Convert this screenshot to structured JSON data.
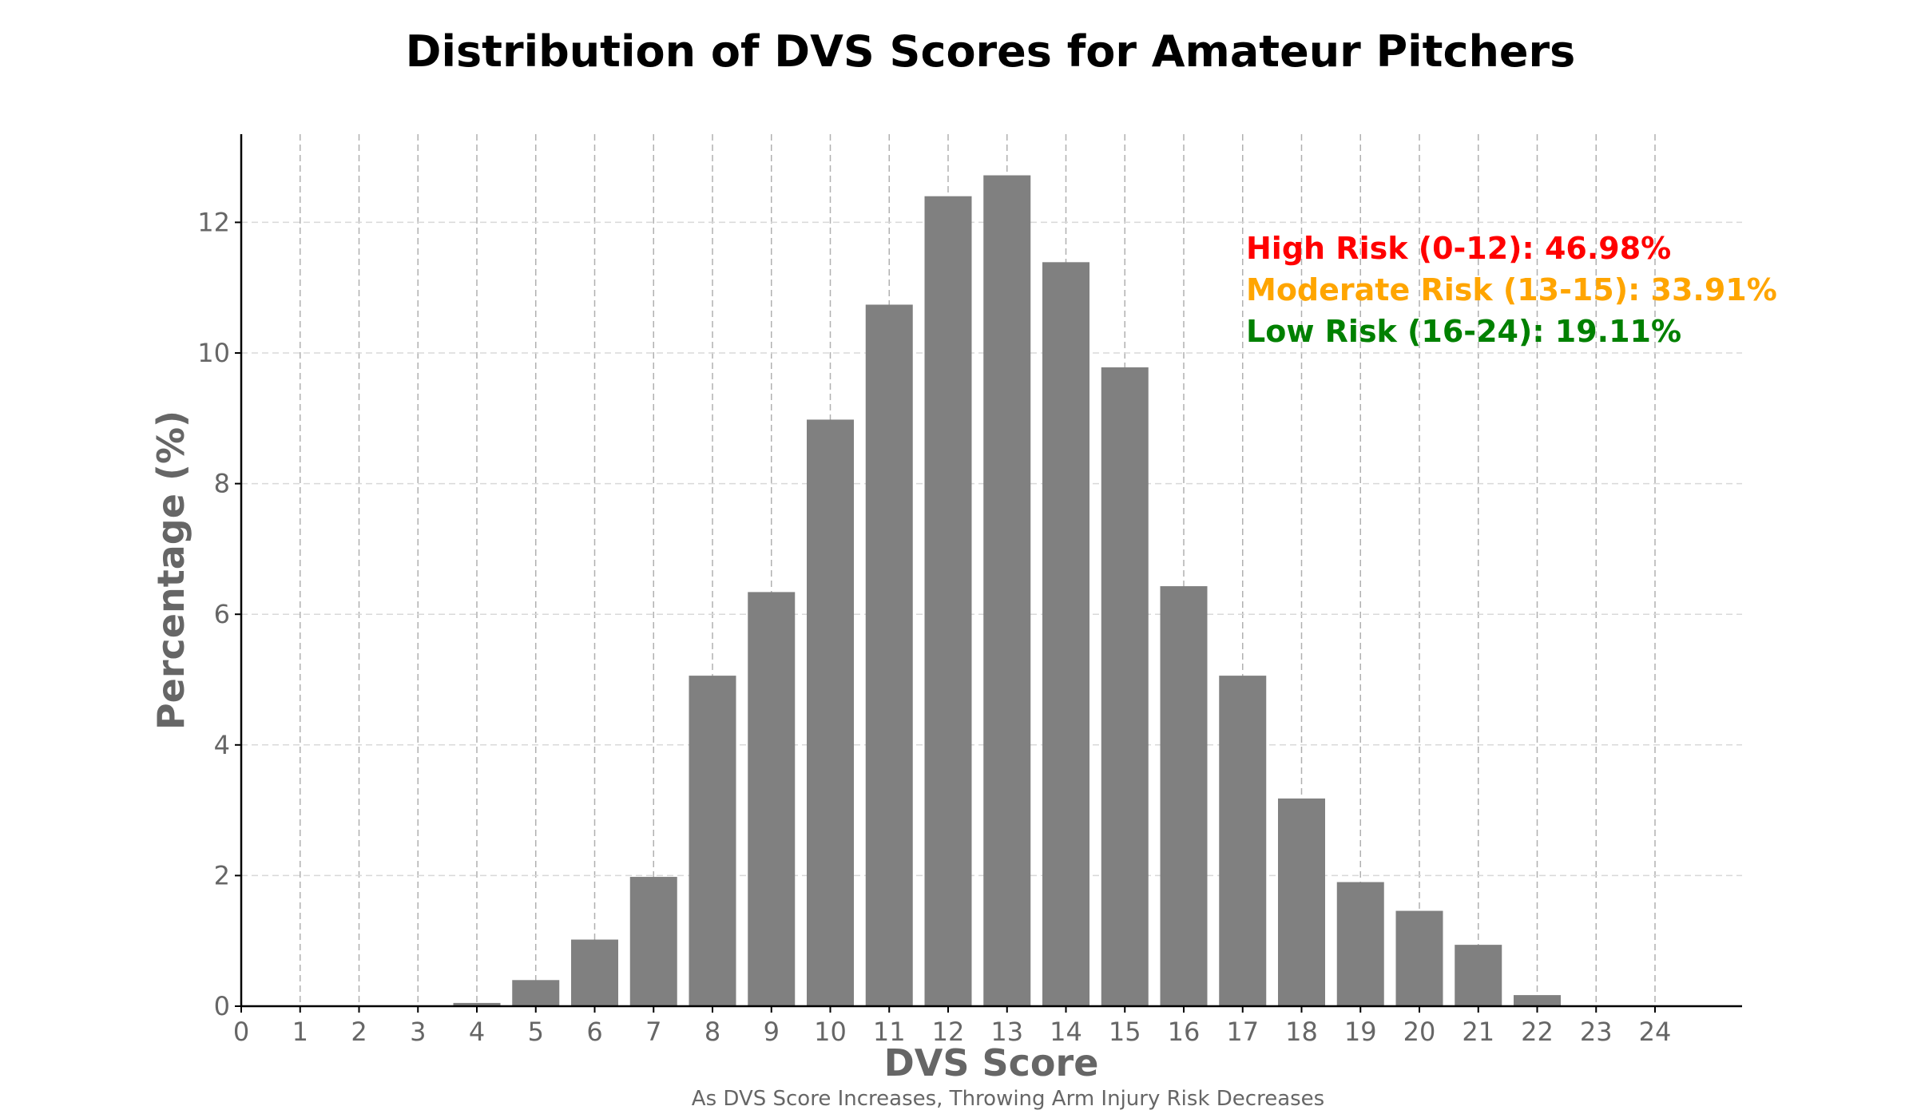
{
  "chart_data": {
    "type": "bar",
    "title": "Distribution of DVS Scores for Amateur Pitchers",
    "xlabel": "DVS Score",
    "ylabel": "Percentage (%)",
    "caption": "As DVS Score Increases, Throwing Arm Injury Risk Decreases",
    "categories": [
      0,
      1,
      2,
      3,
      4,
      5,
      6,
      7,
      8,
      9,
      10,
      11,
      12,
      13,
      14,
      15,
      16,
      17,
      18,
      19,
      20,
      21,
      22,
      23,
      24
    ],
    "values": [
      0,
      0,
      0,
      0,
      0.05,
      0.4,
      1.02,
      1.98,
      5.06,
      6.34,
      8.98,
      10.74,
      12.4,
      12.72,
      11.39,
      9.78,
      6.43,
      5.06,
      3.18,
      1.9,
      1.46,
      0.94,
      0.17,
      0,
      0
    ],
    "x_ticks": [
      "0",
      "1",
      "2",
      "3",
      "4",
      "5",
      "6",
      "7",
      "8",
      "9",
      "10",
      "11",
      "12",
      "13",
      "14",
      "15",
      "16",
      "17",
      "18",
      "19",
      "20",
      "21",
      "22",
      "23",
      "24"
    ],
    "y_ticks": [
      "0",
      "2",
      "4",
      "6",
      "8",
      "10",
      "12"
    ],
    "xlim": [
      0,
      25.5
    ],
    "ylim": [
      0,
      13.35
    ],
    "grid": true,
    "bar_color": "#808080",
    "annotations": [
      {
        "text": "High Risk (0-12): 46.98%",
        "color": "#ff0000"
      },
      {
        "text": "Moderate Risk (13-15): 33.91%",
        "color": "#ffa500"
      },
      {
        "text": "Low Risk (16-24): 19.11%",
        "color": "#008000"
      }
    ]
  }
}
